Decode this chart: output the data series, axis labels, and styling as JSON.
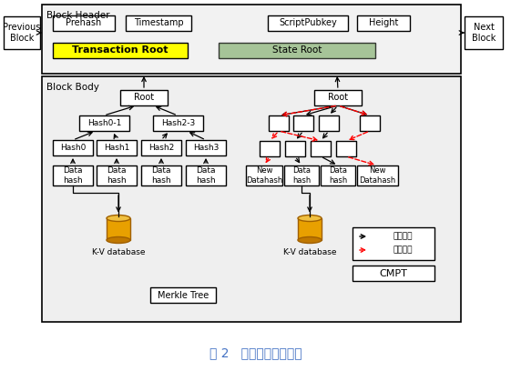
{
  "title": "图 2   改进的区块链结构",
  "title_color": "#4472C4",
  "bg_color": "#ffffff",
  "block_header_label": "Block Header",
  "block_body_label": "Block Body",
  "prev_block_label": "Previous\nBlock",
  "next_block_label": "Next\nBlock",
  "merkle_tree_label": "Merkle Tree",
  "cmpt_label": "CMPT",
  "kv_label": "K-V database",
  "transaction_root_label": "Transaction Root",
  "state_root_label": "State Root",
  "prehash_label": "Prehash",
  "timestamp_label": "Timestamp",
  "scriptpubkey_label": "ScriptPubkey",
  "height_label": "Height",
  "legend_black": "原有数据",
  "legend_red": "并发插入",
  "fig2_label": "图 2   改进的区块链结构"
}
